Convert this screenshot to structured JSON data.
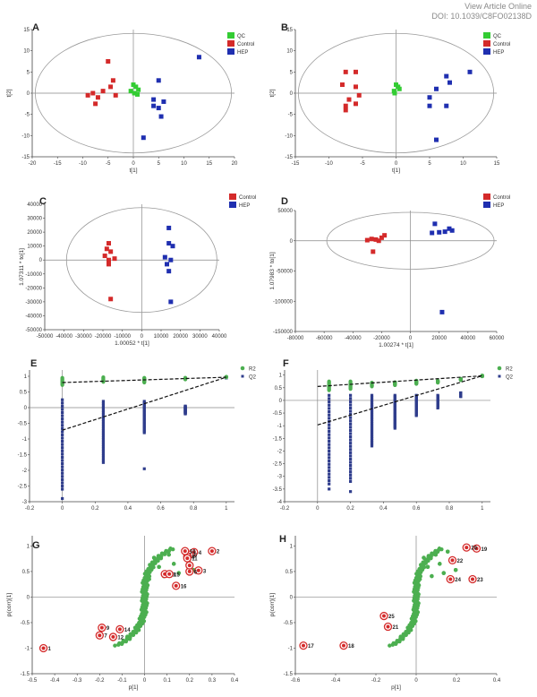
{
  "header": {
    "view_article": "View Article Online",
    "doi": "DOI: 10.1039/C8FO02138D"
  },
  "colors": {
    "qc": "#33cc33",
    "control": "#d42a2a",
    "hep": "#1f2fb0",
    "r2": "#4caf50",
    "q2": "#2f3d8c",
    "ellipse": "#9a9a9a",
    "marker_ring": "#d42a2a"
  },
  "chart_data": [
    {
      "panel": "A",
      "type": "scatter",
      "xlabel": "t[1]",
      "ylabel": "t[2]",
      "xlim": [
        -20,
        20
      ],
      "ylim": [
        -15,
        15
      ],
      "xticks": [
        "-20",
        "-15",
        "-10",
        "-5",
        "0",
        "5",
        "10",
        "15",
        "20"
      ],
      "yticks": [
        "-15",
        "-10",
        "-5",
        "0",
        "5",
        "10",
        "15"
      ],
      "legend": [
        "QC",
        "Control",
        "HEP"
      ],
      "series": [
        {
          "name": "QC",
          "points": [
            [
              0,
              2
            ],
            [
              0.5,
              1.5
            ],
            [
              -0.5,
              0.5
            ],
            [
              1,
              0.8
            ],
            [
              0.2,
              0
            ],
            [
              0.8,
              -0.3
            ]
          ]
        },
        {
          "name": "Control",
          "points": [
            [
              -5,
              7.5
            ],
            [
              -4,
              3
            ],
            [
              -8,
              0
            ],
            [
              -9,
              -0.5
            ],
            [
              -7,
              -1
            ],
            [
              -7.5,
              -2.5
            ],
            [
              -6,
              0.5
            ],
            [
              -3.5,
              -0.5
            ],
            [
              -4.5,
              1.5
            ]
          ]
        },
        {
          "name": "HEP",
          "points": [
            [
              13,
              8.5
            ],
            [
              5,
              3
            ],
            [
              6,
              -2
            ],
            [
              5,
              -3.5
            ],
            [
              4,
              -3
            ],
            [
              5.5,
              -5.5
            ],
            [
              2,
              -10.5
            ],
            [
              4,
              -1.5
            ]
          ]
        }
      ]
    },
    {
      "panel": "B",
      "type": "scatter",
      "xlabel": "t[1]",
      "ylabel": "t[2]",
      "xlim": [
        -15,
        15
      ],
      "ylim": [
        -15,
        15
      ],
      "xticks": [
        "-15",
        "-10",
        "-5",
        "0",
        "5",
        "10",
        "15"
      ],
      "yticks": [
        "-15",
        "-10",
        "-5",
        "0",
        "5",
        "10",
        "15"
      ],
      "legend": [
        "QC",
        "Control",
        "HEP"
      ],
      "series": [
        {
          "name": "QC",
          "points": [
            [
              0,
              2
            ],
            [
              0.3,
              1.5
            ],
            [
              -0.3,
              0.5
            ],
            [
              0.5,
              1
            ],
            [
              -0.2,
              0
            ]
          ]
        },
        {
          "name": "Control",
          "points": [
            [
              -7.5,
              5
            ],
            [
              -6,
              5
            ],
            [
              -8,
              2
            ],
            [
              -6,
              1.5
            ],
            [
              -5.5,
              -0.5
            ],
            [
              -7.5,
              -3
            ],
            [
              -7.5,
              -4
            ],
            [
              -7,
              -1.5
            ],
            [
              -6,
              -2.5
            ]
          ]
        },
        {
          "name": "HEP",
          "points": [
            [
              11,
              5
            ],
            [
              7.5,
              4
            ],
            [
              8,
              2.5
            ],
            [
              6,
              1
            ],
            [
              5,
              -1
            ],
            [
              7.5,
              -3
            ],
            [
              5,
              -3
            ],
            [
              6,
              -11
            ]
          ]
        }
      ]
    },
    {
      "panel": "C",
      "type": "scatter",
      "xlabel": "1.00052 * t[1]",
      "ylabel": "1.07311 * to[1]",
      "xlim": [
        -50000,
        40000
      ],
      "ylim": [
        -50000,
        40000
      ],
      "xticks": [
        "-50000",
        "-40000",
        "-30000",
        "-20000",
        "-10000",
        "0",
        "10000",
        "20000",
        "30000",
        "40000"
      ],
      "yticks": [
        "-50000",
        "-40000",
        "-30000",
        "-20000",
        "-10000",
        "0",
        "10000",
        "20000",
        "30000",
        "40000"
      ],
      "legend": [
        "Control",
        "HEP"
      ],
      "series": [
        {
          "name": "Control",
          "points": [
            [
              -17000,
              12000
            ],
            [
              -18000,
              8000
            ],
            [
              -16000,
              6000
            ],
            [
              -19000,
              3000
            ],
            [
              -17000,
              0
            ],
            [
              -14000,
              1000
            ],
            [
              -17000,
              -3000
            ],
            [
              -16000,
              -28000
            ]
          ]
        },
        {
          "name": "HEP",
          "points": [
            [
              14000,
              23000
            ],
            [
              14000,
              12000
            ],
            [
              16000,
              10000
            ],
            [
              12000,
              2000
            ],
            [
              15000,
              0
            ],
            [
              13000,
              -3000
            ],
            [
              14000,
              -8000
            ],
            [
              15000,
              -30000
            ]
          ]
        }
      ]
    },
    {
      "panel": "D",
      "type": "scatter",
      "xlabel": "1.00274 * t[1]",
      "ylabel": "1.07983 * to[1]",
      "xlim": [
        -80000,
        60000
      ],
      "ylim": [
        -150000,
        50000
      ],
      "xticks": [
        "-80000",
        "-60000",
        "-40000",
        "-20000",
        "0",
        "20000",
        "40000",
        "60000"
      ],
      "yticks": [
        "-150000",
        "-100000",
        "-50000",
        "0",
        "50000"
      ],
      "legend": [
        "Control",
        "HEP"
      ],
      "series": [
        {
          "name": "Control",
          "points": [
            [
              -30000,
              1000
            ],
            [
              -27000,
              3000
            ],
            [
              -24000,
              2000
            ],
            [
              -20000,
              5000
            ],
            [
              -18000,
              9000
            ],
            [
              -22000,
              0
            ],
            [
              -26000,
              -18000
            ]
          ]
        },
        {
          "name": "HEP",
          "points": [
            [
              17000,
              28000
            ],
            [
              15000,
              13000
            ],
            [
              20000,
              14000
            ],
            [
              24000,
              15000
            ],
            [
              27000,
              20000
            ],
            [
              29000,
              17000
            ],
            [
              22000,
              -118000
            ]
          ]
        }
      ]
    },
    {
      "panel": "E",
      "type": "scatter",
      "xlabel": "",
      "ylabel": "",
      "xlim": [
        -0.2,
        1.05
      ],
      "ylim": [
        -3,
        1.2
      ],
      "xticks": [
        "-0.2",
        "0",
        "0.2",
        "0.4",
        "0.6",
        "0.8",
        "1"
      ],
      "yticks": [
        "-3",
        "-2.5",
        "-2",
        "-1.5",
        "-1",
        "-0.5",
        "0",
        "0.5",
        "1"
      ],
      "legend": [
        "R2",
        "Q2"
      ],
      "r2_line": [
        [
          0,
          0.8
        ],
        [
          1,
          0.97
        ]
      ],
      "q2_line": [
        [
          0,
          -0.72
        ],
        [
          1,
          0.97
        ]
      ],
      "r2_columns": [
        {
          "x": 0,
          "top": 0.95,
          "bottom": 0.72
        },
        {
          "x": 0.25,
          "top": 0.97,
          "bottom": 0.82
        },
        {
          "x": 0.5,
          "top": 0.95,
          "bottom": 0.8
        },
        {
          "x": 0.75,
          "top": 0.95,
          "bottom": 0.9
        },
        {
          "x": 1,
          "top": 0.98,
          "bottom": 0.97
        }
      ],
      "q2_columns": [
        {
          "x": 0,
          "top": 0.25,
          "bottom": -2.5,
          "outliers": [
            -2.6,
            -2.9
          ]
        },
        {
          "x": 0.25,
          "top": 0.2,
          "bottom": -1.75
        },
        {
          "x": 0.5,
          "top": 0.2,
          "bottom": -0.8,
          "outliers": [
            -1.95
          ]
        },
        {
          "x": 0.75,
          "top": 0.05,
          "bottom": -0.2
        },
        {
          "x": 1,
          "top": 0.98,
          "bottom": 0.95
        }
      ]
    },
    {
      "panel": "F",
      "type": "scatter",
      "xlabel": "",
      "ylabel": "",
      "xlim": [
        -0.2,
        1.05
      ],
      "ylim": [
        -4,
        1.2
      ],
      "xticks": [
        "-0.2",
        "0",
        "0.2",
        "0.4",
        "0.6",
        "0.8",
        "1"
      ],
      "yticks": [
        "-4",
        "-3.5",
        "-3",
        "-2.5",
        "-2",
        "-1.5",
        "-1",
        "-0.5",
        "0",
        "0.5",
        "1"
      ],
      "legend": [
        "R2",
        "Q2"
      ],
      "r2_line": [
        [
          0,
          0.55
        ],
        [
          1,
          0.97
        ]
      ],
      "q2_line": [
        [
          0,
          -0.97
        ],
        [
          1,
          0.97
        ]
      ],
      "r2_columns": [
        {
          "x": 0.07,
          "top": 0.75,
          "bottom": 0.4
        },
        {
          "x": 0.2,
          "top": 0.75,
          "bottom": 0.45
        },
        {
          "x": 0.33,
          "top": 0.7,
          "bottom": 0.55
        },
        {
          "x": 0.47,
          "top": 0.72,
          "bottom": 0.6
        },
        {
          "x": 0.6,
          "top": 0.78,
          "bottom": 0.65
        },
        {
          "x": 0.73,
          "top": 0.78,
          "bottom": 0.7
        },
        {
          "x": 0.87,
          "top": 0.85,
          "bottom": 0.8
        },
        {
          "x": 1,
          "top": 0.98,
          "bottom": 0.95
        }
      ],
      "q2_columns": [
        {
          "x": 0.07,
          "top": 0.2,
          "bottom": -3.3,
          "outliers": [
            -3.5
          ]
        },
        {
          "x": 0.2,
          "top": 0.2,
          "bottom": -3.2,
          "outliers": [
            -3.6
          ]
        },
        {
          "x": 0.33,
          "top": 0.2,
          "bottom": -1.8
        },
        {
          "x": 0.47,
          "top": 0.2,
          "bottom": -1.1
        },
        {
          "x": 0.6,
          "top": 0.2,
          "bottom": -0.6
        },
        {
          "x": 0.73,
          "top": 0.2,
          "bottom": -0.3
        },
        {
          "x": 0.87,
          "top": 0.3,
          "bottom": 0.15
        },
        {
          "x": 1,
          "top": 0.98,
          "bottom": 0.95
        }
      ]
    },
    {
      "panel": "G",
      "type": "scatter",
      "xlabel": "p[1]",
      "ylabel": "p(corr)[1]",
      "xlim": [
        -0.5,
        0.4
      ],
      "ylim": [
        -1.5,
        1.2
      ],
      "xticks": [
        "-0.5",
        "-0.4",
        "-0.3",
        "-0.2",
        "-0.1",
        "0",
        "0.1",
        "0.2",
        "0.3",
        "0.4"
      ],
      "yticks": [
        "-1.5",
        "-1",
        "-0.5",
        "0",
        "0.5",
        "1"
      ],
      "labeled": [
        {
          "id": "1",
          "x": -0.45,
          "y": -1.0
        },
        {
          "id": "2",
          "x": 0.3,
          "y": 0.9
        },
        {
          "id": "3",
          "x": 0.24,
          "y": 0.52
        },
        {
          "id": "4",
          "x": 0.22,
          "y": 0.88
        },
        {
          "id": "5",
          "x": 0.2,
          "y": 0.83
        },
        {
          "id": "6",
          "x": 0.2,
          "y": 0.5
        },
        {
          "id": "7",
          "x": -0.2,
          "y": -0.75
        },
        {
          "id": "8",
          "x": 0.19,
          "y": 0.8
        },
        {
          "id": "9",
          "x": -0.19,
          "y": -0.6
        },
        {
          "id": "10",
          "x": 0.18,
          "y": 0.9
        },
        {
          "id": "11",
          "x": 0.19,
          "y": 0.76
        },
        {
          "id": "12",
          "x": -0.14,
          "y": -0.78
        },
        {
          "id": "13",
          "x": 0.09,
          "y": 0.45
        },
        {
          "id": "14",
          "x": -0.11,
          "y": -0.63
        },
        {
          "id": "15",
          "x": 0.11,
          "y": 0.45
        },
        {
          "id": "16",
          "x": 0.14,
          "y": 0.22
        },
        {
          "id": "",
          "x": 0.2,
          "y": 0.62
        }
      ]
    },
    {
      "panel": "H",
      "type": "scatter",
      "xlabel": "p[1]",
      "ylabel": "p(corr)[1]",
      "xlim": [
        -0.6,
        0.4
      ],
      "ylim": [
        -1.5,
        1.2
      ],
      "xticks": [
        "-0.6",
        "-0.4",
        "-0.2",
        "0",
        "0.2",
        "0.4"
      ],
      "yticks": [
        "-1.5",
        "-1",
        "-0.5",
        "0",
        "0.5",
        "1"
      ],
      "labeled": [
        {
          "id": "17",
          "x": -0.56,
          "y": -0.95
        },
        {
          "id": "18",
          "x": -0.36,
          "y": -0.95
        },
        {
          "id": "19",
          "x": 0.3,
          "y": 0.95
        },
        {
          "id": "20",
          "x": 0.25,
          "y": 0.97
        },
        {
          "id": "21",
          "x": -0.14,
          "y": -0.58
        },
        {
          "id": "22",
          "x": 0.18,
          "y": 0.72
        },
        {
          "id": "23",
          "x": 0.28,
          "y": 0.35
        },
        {
          "id": "24",
          "x": 0.17,
          "y": 0.35
        },
        {
          "id": "25",
          "x": -0.16,
          "y": -0.37
        }
      ]
    }
  ]
}
